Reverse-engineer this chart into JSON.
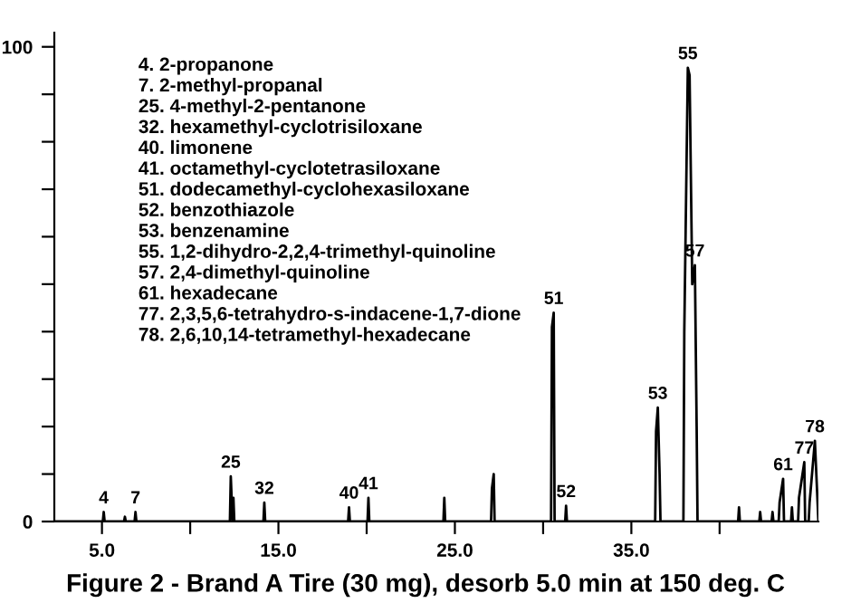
{
  "chart_data": {
    "type": "line",
    "title": "Figure 2 - Brand A Tire (30 mg), desorb 5.0 min at 150 deg. C",
    "xlim": [
      2.3,
      45.6
    ],
    "xticks": [
      {
        "value": 5,
        "label": "5.0"
      },
      {
        "value": 10,
        "label": null
      },
      {
        "value": 15,
        "label": "15.0"
      },
      {
        "value": 20,
        "label": null
      },
      {
        "value": 25,
        "label": "25.0"
      },
      {
        "value": 30,
        "label": null
      },
      {
        "value": 35,
        "label": "35.0"
      },
      {
        "value": 40,
        "label": null
      }
    ],
    "ylim": [
      0,
      103
    ],
    "yticks": [
      0,
      {
        "value": 10,
        "label": null
      },
      {
        "value": 20,
        "label": null
      },
      {
        "value": 30,
        "label": null
      },
      {
        "value": 40,
        "label": null
      },
      {
        "value": 50,
        "label": null
      },
      {
        "value": 60,
        "label": null
      },
      {
        "value": 70,
        "label": null
      },
      {
        "value": 80,
        "label": null
      },
      {
        "value": 90,
        "label": null
      },
      100
    ],
    "grid": false,
    "legend": false,
    "marker": "none",
    "line_style": "solid",
    "series": [
      {
        "color": "#000000",
        "x": [
          2.3,
          5.05,
          5.1,
          5.15,
          6.25,
          6.3,
          6.35,
          6.85,
          6.9,
          6.95,
          12.25,
          12.3,
          12.4,
          12.45,
          12.5,
          14.15,
          14.2,
          14.25,
          18.95,
          19.0,
          19.05,
          20.05,
          20.1,
          20.15,
          24.35,
          24.4,
          24.45,
          27.05,
          27.1,
          27.2,
          27.25,
          30.45,
          30.5,
          30.6,
          30.65,
          31.25,
          31.3,
          31.35,
          36.35,
          36.4,
          36.5,
          36.6,
          36.65,
          37.95,
          38.0,
          38.2,
          38.3,
          38.45,
          38.6,
          38.7,
          38.75,
          41.05,
          41.1,
          41.15,
          42.25,
          42.3,
          42.35,
          42.95,
          43.0,
          43.05,
          43.35,
          43.4,
          43.6,
          43.65,
          44.05,
          44.1,
          44.15,
          44.45,
          44.5,
          44.8,
          44.85,
          45.05,
          45.1,
          45.4,
          45.6
        ],
        "values": [
          0,
          0,
          2,
          0,
          0,
          1,
          0,
          0,
          2,
          0,
          0,
          9.5,
          0,
          5,
          0,
          0,
          4,
          0,
          0,
          3,
          0,
          0,
          5,
          0,
          0,
          5,
          0,
          0,
          7,
          10,
          0,
          0,
          41,
          44,
          0,
          0,
          3.3,
          0,
          0,
          19,
          24,
          10,
          0,
          0,
          40,
          95.6,
          94,
          50,
          54,
          20,
          0,
          0,
          3,
          0,
          0,
          2,
          0,
          0,
          2,
          0,
          0,
          4,
          9,
          0,
          0,
          3,
          0,
          0,
          5,
          12.5,
          0,
          0,
          4,
          17,
          0
        ]
      }
    ],
    "annotations": [
      "4. 2-propanone",
      "7. 2-methyl-propanal",
      "25. 4-methyl-2-pentanone",
      "32. hexamethyl-cyclotrisiloxane",
      "40. limonene",
      "41. octamethyl-cyclotetrasiloxane",
      "51. dodecamethyl-cyclohexasiloxane",
      "52. benzothiazole",
      "53. benzenamine",
      "55. 1,2-dihydro-2,2,4-trimethyl-quinoline",
      "57. 2,4-dimethyl-quinoline",
      "61. hexadecane",
      "77. 2,3,5,6-tetrahydro-s-indacene-1,7-dione",
      "78. 2,6,10,14-tetramethyl-hexadecane",
      {
        "text": "4",
        "x": 5.1,
        "y": 2
      },
      {
        "text": "7",
        "x": 6.9,
        "y": 2
      },
      {
        "text": "25",
        "x": 12.3,
        "y": 9.5
      },
      {
        "text": "32",
        "x": 14.2,
        "y": 4
      },
      {
        "text": "40",
        "x": 19.0,
        "y": 3
      },
      {
        "text": "41",
        "x": 20.1,
        "y": 5
      },
      {
        "text": "51",
        "x": 30.6,
        "y": 44
      },
      {
        "text": "52",
        "x": 31.3,
        "y": 3.3
      },
      {
        "text": "53",
        "x": 36.5,
        "y": 24
      },
      {
        "text": "55",
        "x": 38.2,
        "y": 95.6
      },
      {
        "text": "57",
        "x": 38.6,
        "y": 54
      },
      {
        "text": "61",
        "x": 43.6,
        "y": 9
      },
      {
        "text": "77",
        "x": 44.8,
        "y": 12.5
      },
      {
        "text": "78",
        "x": 45.4,
        "y": 17
      }
    ]
  }
}
